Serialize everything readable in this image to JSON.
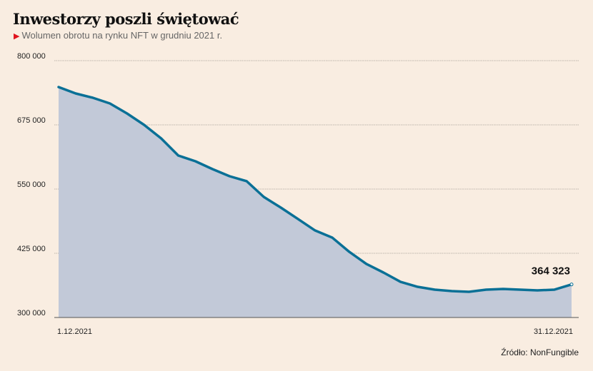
{
  "chart_data": {
    "type": "area",
    "title": "Inwestorzy poszli świętować",
    "subtitle": "Wolumen obrotu na rynku NFT w grudniu 2021 r.",
    "xlabel": "",
    "ylabel": "",
    "x_tick_labels": [
      "1.12.2021",
      "31.12.2021"
    ],
    "y_ticks": [
      300000,
      425000,
      550000,
      675000,
      800000
    ],
    "y_tick_labels": [
      "300 000",
      "425 000",
      "550 000",
      "675 000",
      "800 000"
    ],
    "ylim": [
      300000,
      800000
    ],
    "grid": true,
    "x": [
      1,
      2,
      3,
      4,
      5,
      6,
      7,
      8,
      9,
      10,
      11,
      12,
      13,
      14,
      15,
      16,
      17,
      18,
      19,
      20,
      21,
      22,
      23,
      24,
      25,
      26,
      27,
      28,
      29,
      30,
      31
    ],
    "values": [
      748600,
      736100,
      727800,
      716700,
      697200,
      675000,
      648600,
      615300,
      604200,
      588900,
      575000,
      565300,
      534700,
      513900,
      491700,
      469400,
      455600,
      427800,
      404200,
      387500,
      369400,
      359700,
      354200,
      351400,
      350000,
      354200,
      355600,
      354200,
      352800,
      354200,
      364323
    ],
    "annotation": "364 323",
    "line_color": "#0a7096",
    "fill_color": "#c2c9d8",
    "source": "Źródło: NonFungible"
  }
}
